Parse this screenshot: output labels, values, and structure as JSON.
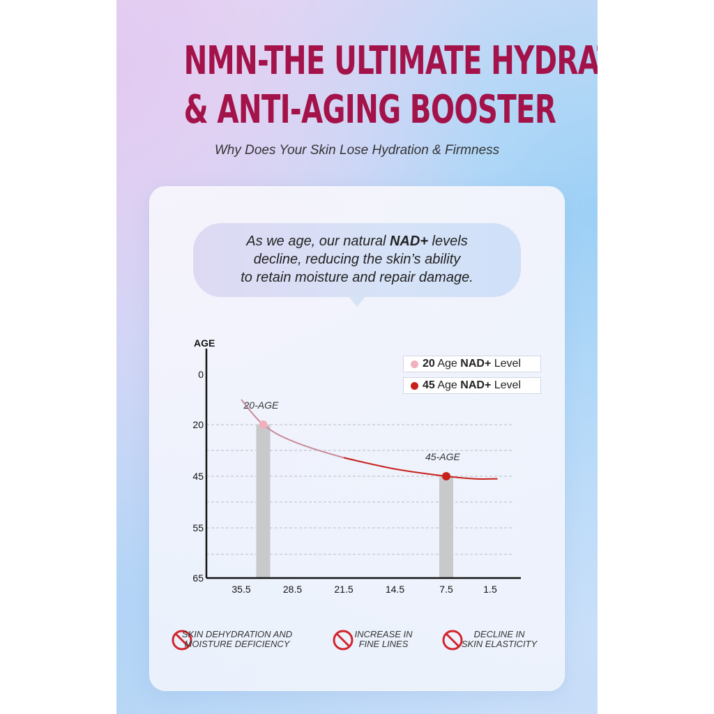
{
  "headline": {
    "line1": "NMN-THE ULTIMATE HYDRATION",
    "line2": "& ANTI-AGING BOOSTER"
  },
  "subtitle": "Why Does Your Skin Lose Hydration & Firmness",
  "bubble": {
    "before": "As we age, our natural ",
    "emphasis": "NAD+",
    "after_line1": " levels",
    "line2": "decline, reducing the skin’s ability",
    "line3": "to retain moisture and repair damage."
  },
  "legend": {
    "item1": {
      "age": "20",
      "label_a": " Age ",
      "label_b": "NAD+",
      "label_c": " Level",
      "color": "#f0b1bd"
    },
    "item2": {
      "age": "45",
      "label_a": " Age ",
      "label_b": "NAD+",
      "label_c": " Level",
      "color": "#c8201a"
    }
  },
  "chart_data": {
    "type": "line",
    "ylabel": "AGE",
    "y_ticks": [
      "0",
      "20",
      "45",
      "55",
      "65"
    ],
    "x_ticks": [
      "35.5",
      "28.5",
      "21.5",
      "14.5",
      "7.5",
      "1.5"
    ],
    "y_axis_inverted": true,
    "grid": "dashed horizontal",
    "legend_position": "top-right",
    "curve_colors": {
      "early": "#c78b9c",
      "late": "#c8201a"
    },
    "markers": [
      {
        "label": "20-AGE",
        "x": 32.5,
        "y": 20,
        "color": "#f0b1bd"
      },
      {
        "label": "45-AGE",
        "x": 7.5,
        "y": 45,
        "color": "#c8201a"
      }
    ],
    "curve": [
      {
        "x": 35.5,
        "y": 10
      },
      {
        "x": 32.5,
        "y": 20
      },
      {
        "x": 28.5,
        "y": 28
      },
      {
        "x": 21.5,
        "y": 36
      },
      {
        "x": 14.5,
        "y": 41.5
      },
      {
        "x": 7.5,
        "y": 45
      },
      {
        "x": 3.5,
        "y": 45.5
      },
      {
        "x": 0.5,
        "y": 45.5
      }
    ]
  },
  "issues": [
    {
      "line1": "SKIN DEHYDRATION AND",
      "line2": "MOISTURE DEFICIENCY",
      "icon": "no-symbol-icon"
    },
    {
      "line1": "INCREASE IN",
      "line2": "FINE LINES",
      "icon": "no-symbol-icon"
    },
    {
      "line1": "DECLINE IN",
      "line2": "SKIN ELASTICITY",
      "icon": "no-symbol-icon"
    }
  ],
  "colors": {
    "headline": "#a3134a",
    "ban_icon": "#d2242c",
    "bar": "#c8c9cb"
  }
}
